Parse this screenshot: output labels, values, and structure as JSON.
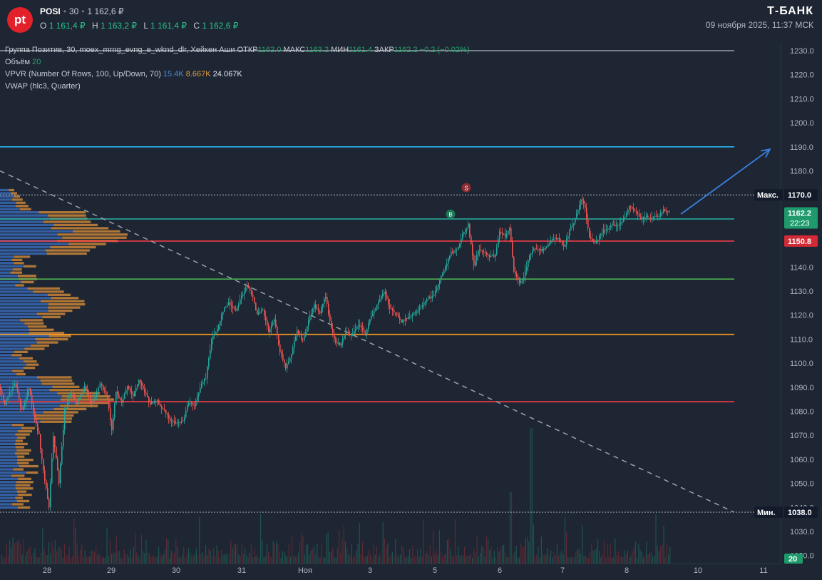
{
  "header": {
    "logo_text": "pt",
    "ticker": "POSI",
    "interval": "30",
    "price": "1 162,6 ₽",
    "ohlc": [
      {
        "label": "O",
        "value": "1 161,4 ₽"
      },
      {
        "label": "H",
        "value": "1 163,2 ₽"
      },
      {
        "label": "L",
        "value": "1 161,4 ₽"
      },
      {
        "label": "C",
        "value": "1 162,6 ₽"
      }
    ],
    "brand": "Т-БАНК",
    "timestamp": "09 ноября 2025, 11:37 МСК"
  },
  "indicators": {
    "main": {
      "name": "Группа Позитив, 30, moex_mrng_evng_e_wknd_dlr, Хейкен Аши",
      "open_label": "ОТКР",
      "open": "1162.0",
      "high_label": "МАКС",
      "high": "1163.2",
      "low_label": "МИН",
      "low": "1161.4",
      "close_label": "ЗАКР",
      "close": "1162.2",
      "change": "−0.2 (−0.02%)"
    },
    "volume": {
      "label": "Объём",
      "value": "20"
    },
    "vpvr": {
      "label": "VPVR (Number Of Rows, 100, Up/Down, 70)",
      "up": "15.4K",
      "down": "8.667K",
      "total": "24.067K"
    },
    "vwap": {
      "label": "VWAP (hlc3, Quarter)"
    }
  },
  "chart_data": {
    "type": "candlestick",
    "style": "heikin-ashi",
    "ylim": [
      1015,
      1236
    ],
    "y_ticks": [
      1020,
      1030,
      1040,
      1050,
      1060,
      1070,
      1080,
      1090,
      1100,
      1110,
      1120,
      1130,
      1140,
      1150,
      1160,
      1170,
      1180,
      1190,
      1200,
      1210,
      1220,
      1230
    ],
    "x_ticks": [
      "28",
      "29",
      "30",
      "31",
      "Ноя",
      "3",
      "5",
      "6",
      "7",
      "8",
      "10",
      "11"
    ],
    "price_path": [
      [
        0,
        1090
      ],
      [
        8,
        1083
      ],
      [
        22,
        1092
      ],
      [
        32,
        1080
      ],
      [
        42,
        1090
      ],
      [
        50,
        1077
      ],
      [
        56,
        1070
      ],
      [
        62,
        1055
      ],
      [
        70,
        1040
      ],
      [
        76,
        1070
      ],
      [
        84,
        1050
      ],
      [
        92,
        1080
      ],
      [
        100,
        1087
      ],
      [
        110,
        1084
      ],
      [
        120,
        1090
      ],
      [
        130,
        1083
      ],
      [
        142,
        1092
      ],
      [
        152,
        1085
      ],
      [
        158,
        1072
      ],
      [
        164,
        1088
      ],
      [
        172,
        1083
      ],
      [
        180,
        1091
      ],
      [
        188,
        1086
      ],
      [
        196,
        1093
      ],
      [
        204,
        1088
      ],
      [
        212,
        1083
      ],
      [
        222,
        1084
      ],
      [
        232,
        1080
      ],
      [
        240,
        1076
      ],
      [
        250,
        1075
      ],
      [
        258,
        1076
      ],
      [
        266,
        1084
      ],
      [
        274,
        1082
      ],
      [
        282,
        1090
      ],
      [
        290,
        1094
      ],
      [
        298,
        1110
      ],
      [
        306,
        1114
      ],
      [
        314,
        1122
      ],
      [
        322,
        1125
      ],
      [
        332,
        1122
      ],
      [
        340,
        1128
      ],
      [
        348,
        1132
      ],
      [
        356,
        1128
      ],
      [
        362,
        1120
      ],
      [
        370,
        1122
      ],
      [
        378,
        1113
      ],
      [
        386,
        1118
      ],
      [
        394,
        1105
      ],
      [
        402,
        1098
      ],
      [
        410,
        1104
      ],
      [
        418,
        1114
      ],
      [
        426,
        1109
      ],
      [
        434,
        1118
      ],
      [
        442,
        1124
      ],
      [
        450,
        1121
      ],
      [
        458,
        1128
      ],
      [
        464,
        1117
      ],
      [
        470,
        1110
      ],
      [
        478,
        1107
      ],
      [
        486,
        1113
      ],
      [
        494,
        1111
      ],
      [
        504,
        1116
      ],
      [
        514,
        1112
      ],
      [
        522,
        1120
      ],
      [
        530,
        1124
      ],
      [
        540,
        1130
      ],
      [
        548,
        1123
      ],
      [
        556,
        1121
      ],
      [
        564,
        1117
      ],
      [
        572,
        1119
      ],
      [
        580,
        1120
      ],
      [
        590,
        1123
      ],
      [
        600,
        1127
      ],
      [
        610,
        1128
      ],
      [
        618,
        1135
      ],
      [
        626,
        1140
      ],
      [
        634,
        1146
      ],
      [
        642,
        1147
      ],
      [
        650,
        1153
      ],
      [
        658,
        1158
      ],
      [
        666,
        1140
      ],
      [
        672,
        1147
      ],
      [
        680,
        1146
      ],
      [
        688,
        1144
      ],
      [
        696,
        1145
      ],
      [
        702,
        1155
      ],
      [
        710,
        1153
      ],
      [
        716,
        1156
      ],
      [
        722,
        1138
      ],
      [
        730,
        1133
      ],
      [
        736,
        1136
      ],
      [
        744,
        1145
      ],
      [
        752,
        1148
      ],
      [
        760,
        1147
      ],
      [
        768,
        1148
      ],
      [
        776,
        1152
      ],
      [
        784,
        1152
      ],
      [
        792,
        1148
      ],
      [
        800,
        1155
      ],
      [
        808,
        1160
      ],
      [
        816,
        1168
      ],
      [
        822,
        1165
      ],
      [
        828,
        1152
      ],
      [
        836,
        1150
      ],
      [
        844,
        1154
      ],
      [
        852,
        1156
      ],
      [
        860,
        1158
      ],
      [
        868,
        1157
      ],
      [
        876,
        1160
      ],
      [
        884,
        1165
      ],
      [
        892,
        1163
      ],
      [
        900,
        1160
      ],
      [
        908,
        1161
      ],
      [
        916,
        1161
      ],
      [
        924,
        1161
      ],
      [
        932,
        1164
      ],
      [
        940,
        1163
      ]
    ],
    "horizontal_levels": [
      {
        "price": 1190,
        "color": "#29b6f6"
      },
      {
        "price": 1170,
        "color": "#b0b6c2",
        "style": "dotted"
      },
      {
        "price": 1160,
        "color": "#26a69a"
      },
      {
        "price": 1150.8,
        "color": "#ef3b45"
      },
      {
        "price": 1135,
        "color": "#4caf50"
      },
      {
        "price": 1112,
        "color": "#ff9e1b"
      },
      {
        "price": 1084,
        "color": "#ef3b45"
      },
      {
        "price": 1230,
        "color": "#9aa1ac"
      },
      {
        "price": 1038,
        "color": "#b0b6c2",
        "style": "dotted"
      }
    ],
    "trendline": {
      "from": [
        0,
        1180
      ],
      "to": [
        1030,
        1038
      ],
      "color": "#9aa1ac",
      "style": "dashed"
    },
    "projection_arrow": {
      "from": [
        955,
        1162
      ],
      "to": [
        1080,
        1189
      ],
      "color": "#3d7ee3"
    },
    "price_labels": [
      {
        "text": "1170.0",
        "prefix": "Макс.",
        "price": 1170,
        "bg": "#131b2b"
      },
      {
        "text": "1162.2",
        "sub": "22:23",
        "price": 1162.2,
        "bg": "#1e9a6c"
      },
      {
        "text": "1150.8",
        "price": 1150.8,
        "bg": "#d22b35"
      },
      {
        "text": "1038.0",
        "prefix": "Мин.",
        "price": 1038,
        "bg": "#131b2b"
      }
    ],
    "markers": [
      {
        "text": "S",
        "x_day": 654,
        "price": 1173,
        "color": "#8e2b33"
      },
      {
        "text": "B",
        "x_day": 632,
        "price": 1162,
        "color": "#1b7a55"
      }
    ],
    "colors": {
      "up": "#26a69a",
      "down": "#ef5350",
      "vp_up": "#3b6fc2",
      "vp_down": "#e0913a"
    },
    "volume_bottom_label": "20"
  }
}
